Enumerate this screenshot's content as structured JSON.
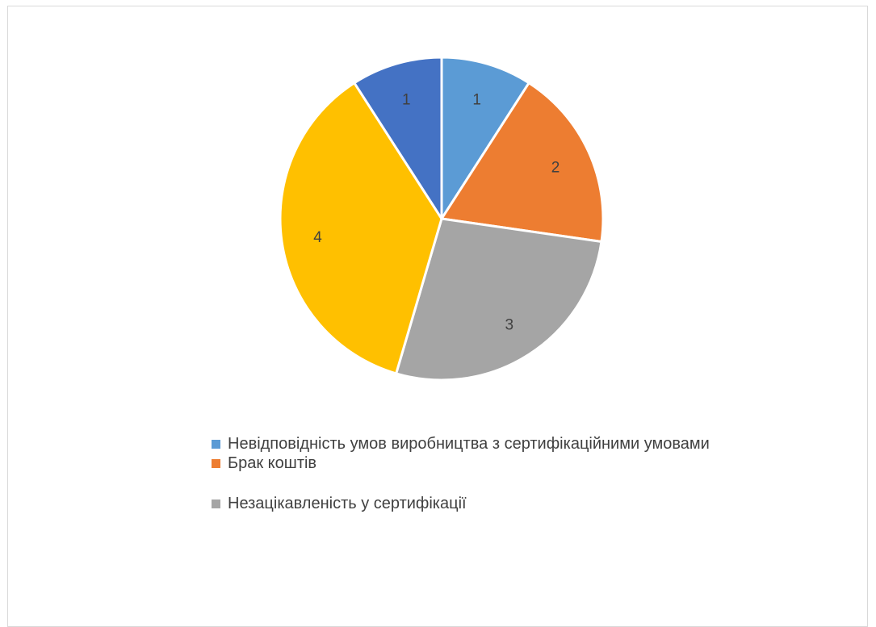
{
  "chart_data": {
    "type": "pie",
    "slices": [
      {
        "label": "Невідповідність умов виробництва з сертифікаційними умовами",
        "value": 1,
        "display": "1",
        "color": "#5B9BD5"
      },
      {
        "label": "Брак коштів",
        "value": 2,
        "display": "2",
        "color": "#ED7D31"
      },
      {
        "label": "Незацікавленість у сертифікації",
        "value": 3,
        "display": "3",
        "color": "#A5A5A5"
      },
      {
        "label": "",
        "value": 4,
        "display": "4",
        "color": "#FFC000"
      },
      {
        "label": "",
        "value": 1,
        "display": "1",
        "color": "#4472C4"
      }
    ],
    "legend_position": "bottom",
    "legend": [
      {
        "label": "Невідповідність умов виробництва з сертифікаційними умовами",
        "color": "#5B9BD5"
      },
      {
        "label": "Брак коштів",
        "color": "#ED7D31"
      },
      {
        "label": "Незацікавленість у сертифікації",
        "color": "#A5A5A5"
      }
    ]
  }
}
